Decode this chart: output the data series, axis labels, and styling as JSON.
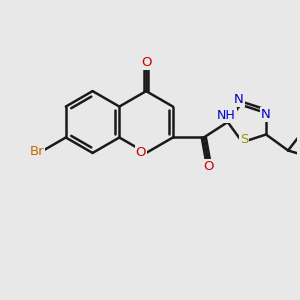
{
  "background_color": "#e8e8e8",
  "bond_color": "#1a1a1a",
  "bond_width": 1.8,
  "atoms": {
    "Br": {
      "color": "#cc6600"
    },
    "O": {
      "color": "#cc0000"
    },
    "N": {
      "color": "#0000cc"
    },
    "S": {
      "color": "#999900"
    },
    "NH": {
      "color": "#0000cc"
    },
    "H": {
      "color": "#008888"
    }
  },
  "fontsize": 9.5,
  "fig_width": 3.0,
  "fig_height": 3.0,
  "dpi": 100
}
